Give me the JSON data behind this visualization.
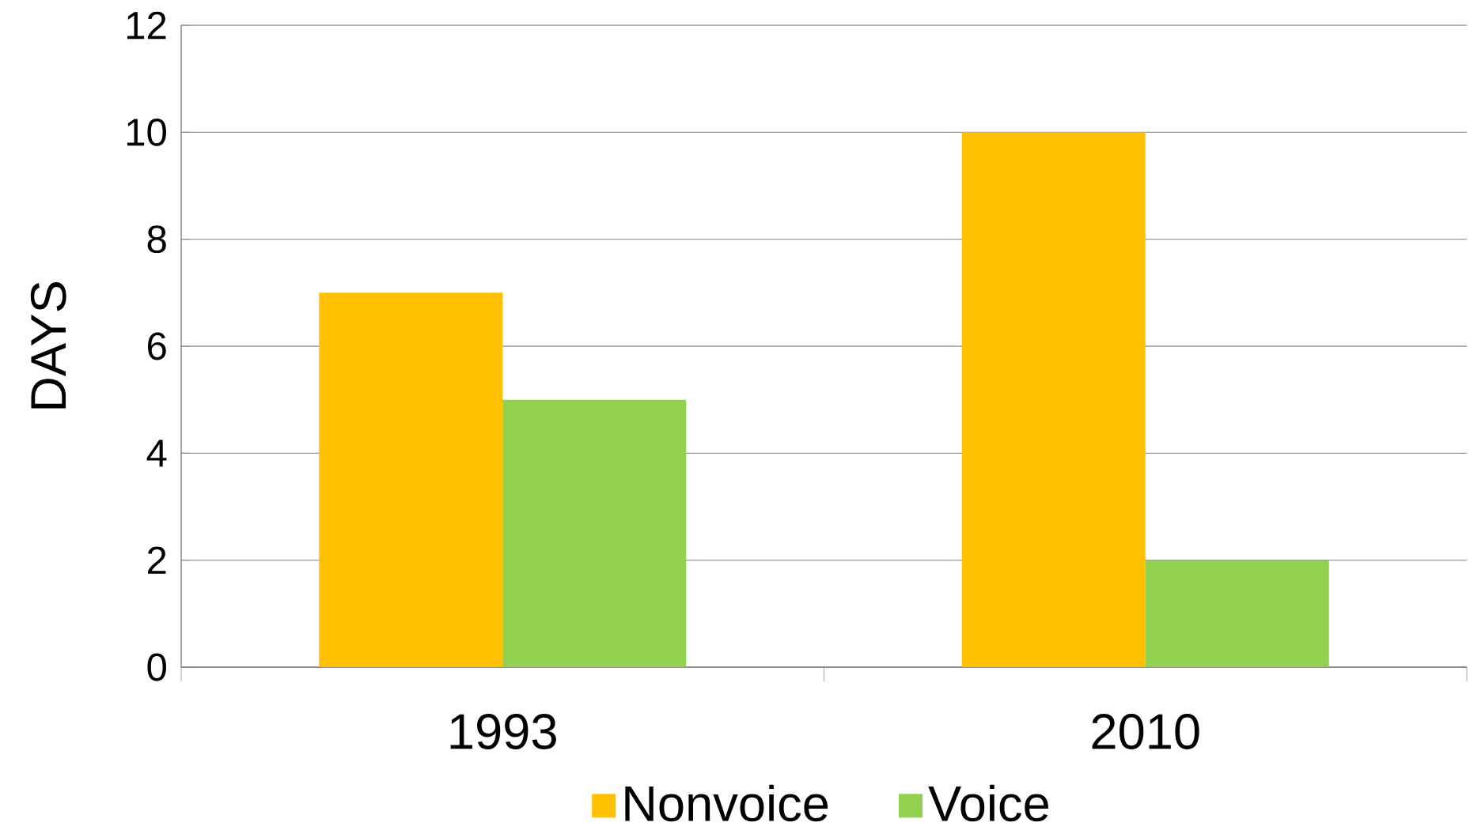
{
  "chart_data": {
    "type": "bar",
    "ylabel": "DAYS",
    "categories": [
      "1993",
      "2010"
    ],
    "series": [
      {
        "name": "Nonvoice",
        "color": "#ffc000",
        "values": [
          7,
          10
        ]
      },
      {
        "name": "Voice",
        "color": "#92d050",
        "values": [
          5,
          2
        ]
      }
    ],
    "ylim": [
      0,
      12
    ],
    "yticks": [
      0,
      2,
      4,
      6,
      8,
      10,
      12
    ],
    "grid": "y",
    "legend": "bottom"
  }
}
